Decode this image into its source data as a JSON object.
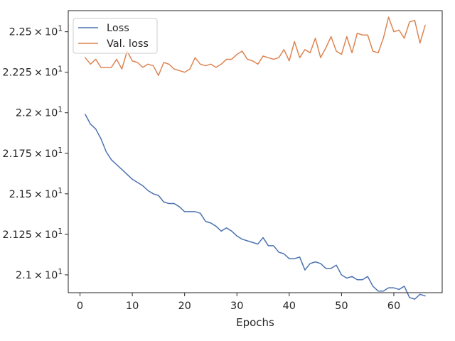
{
  "chart_data": {
    "type": "line",
    "xlabel": "Epochs",
    "ylabel": "",
    "xlim": [
      -2.25,
      69.25
    ],
    "ylim": [
      20.89,
      22.63
    ],
    "x_ticks": [
      0,
      10,
      20,
      30,
      40,
      50,
      60
    ],
    "y_ticks": [
      {
        "value": 21.0,
        "label_base": "2.1",
        "label_exp": "1"
      },
      {
        "value": 21.25,
        "label_base": "2.125",
        "label_exp": "1"
      },
      {
        "value": 21.5,
        "label_base": "2.15",
        "label_exp": "1"
      },
      {
        "value": 21.75,
        "label_base": "2.175",
        "label_exp": "1"
      },
      {
        "value": 22.0,
        "label_base": "2.2",
        "label_exp": "1"
      },
      {
        "value": 22.25,
        "label_base": "2.225",
        "label_exp": "1"
      },
      {
        "value": 22.5,
        "label_base": "2.25",
        "label_exp": "1"
      }
    ],
    "legend_position": "upper-left",
    "grid": false,
    "x": [
      1,
      2,
      3,
      4,
      5,
      6,
      7,
      8,
      9,
      10,
      11,
      12,
      13,
      14,
      15,
      16,
      17,
      18,
      19,
      20,
      21,
      22,
      23,
      24,
      25,
      26,
      27,
      28,
      29,
      30,
      31,
      32,
      33,
      34,
      35,
      36,
      37,
      38,
      39,
      40,
      41,
      42,
      43,
      44,
      45,
      46,
      47,
      48,
      49,
      50,
      51,
      52,
      53,
      54,
      55,
      56,
      57,
      58,
      59,
      60,
      61,
      62,
      63,
      64,
      65,
      66
    ],
    "series": [
      {
        "name": "Loss",
        "color": "#4c72b0",
        "values": [
          21.99,
          21.93,
          21.9,
          21.84,
          21.76,
          21.71,
          21.68,
          21.65,
          21.62,
          21.59,
          21.57,
          21.55,
          21.52,
          21.5,
          21.49,
          21.45,
          21.44,
          21.44,
          21.42,
          21.39,
          21.39,
          21.39,
          21.38,
          21.33,
          21.32,
          21.3,
          21.27,
          21.29,
          21.27,
          21.24,
          21.22,
          21.21,
          21.2,
          21.19,
          21.23,
          21.18,
          21.18,
          21.14,
          21.13,
          21.1,
          21.1,
          21.11,
          21.03,
          21.07,
          21.08,
          21.07,
          21.04,
          21.04,
          21.06,
          21.0,
          20.98,
          20.99,
          20.97,
          20.97,
          20.99,
          20.93,
          20.9,
          20.9,
          20.92,
          20.92,
          20.91,
          20.93,
          20.86,
          20.85,
          20.88,
          20.87
        ]
      },
      {
        "name": "Val. loss",
        "color": "#dd8452",
        "values": [
          22.34,
          22.3,
          22.33,
          22.28,
          22.28,
          22.28,
          22.33,
          22.27,
          22.38,
          22.32,
          22.31,
          22.28,
          22.3,
          22.29,
          22.23,
          22.31,
          22.3,
          22.27,
          22.26,
          22.25,
          22.27,
          22.34,
          22.3,
          22.29,
          22.3,
          22.28,
          22.3,
          22.33,
          22.33,
          22.36,
          22.38,
          22.33,
          22.32,
          22.3,
          22.35,
          22.34,
          22.33,
          22.34,
          22.39,
          22.32,
          22.44,
          22.34,
          22.39,
          22.37,
          22.46,
          22.34,
          22.4,
          22.47,
          22.38,
          22.36,
          22.47,
          22.37,
          22.49,
          22.48,
          22.48,
          22.38,
          22.37,
          22.46,
          22.59,
          22.5,
          22.51,
          22.46,
          22.56,
          22.57,
          22.43,
          22.54
        ]
      }
    ]
  }
}
